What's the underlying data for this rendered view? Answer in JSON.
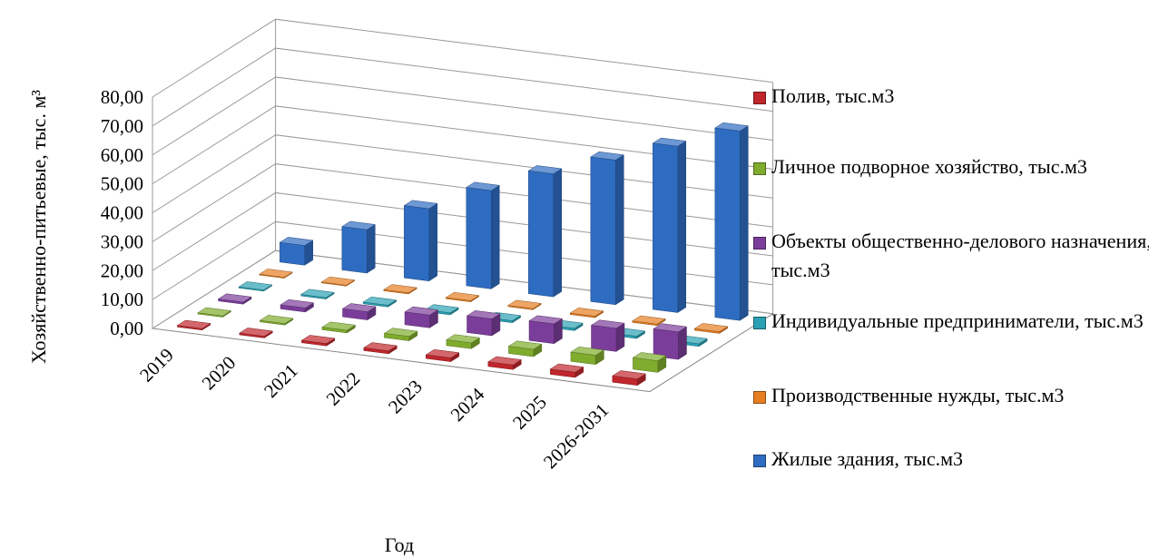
{
  "chart_data": {
    "type": "bar",
    "projection": "3d",
    "categories": [
      "2019",
      "2020",
      "2021",
      "2022",
      "2023",
      "2024",
      "2025",
      "2026-2031"
    ],
    "xlabel": "Год",
    "ylabel": "Хозяйственно-питьевые, тыс. м³",
    "ylim": [
      0,
      80
    ],
    "yticks": [
      "0,00",
      "10,00",
      "20,00",
      "30,00",
      "40,00",
      "50,00",
      "60,00",
      "70,00",
      "80,00"
    ],
    "grid": true,
    "legend_position": "right",
    "series": [
      {
        "name": "Полив, тыс.м3",
        "color": "#c0262b",
        "values": [
          0.5,
          0.6,
          0.8,
          1.0,
          1.3,
          1.6,
          1.8,
          2.2
        ]
      },
      {
        "name": "Личное подворное хозяйство, тыс.м3",
        "color": "#7fac2c",
        "values": [
          0.4,
          0.5,
          0.9,
          1.5,
          2.0,
          2.5,
          3.2,
          4.0
        ]
      },
      {
        "name": "Объекты общественно-делового назначения, тыс.м3",
        "color": "#7b3d9a",
        "values": [
          0.7,
          1.4,
          2.8,
          4.4,
          5.8,
          6.8,
          8.0,
          9.5
        ]
      },
      {
        "name": "Индивидуальные предприниматели, тыс.м3",
        "color": "#2aa0b3",
        "values": [
          0.4,
          0.5,
          0.6,
          0.7,
          0.7,
          0.8,
          0.8,
          0.9
        ]
      },
      {
        "name": "Производственные нужды, тыс.м3",
        "color": "#e67e22",
        "values": [
          0.3,
          0.3,
          0.4,
          0.4,
          0.4,
          0.5,
          0.5,
          0.6
        ]
      },
      {
        "name": "Жилые здания, тыс.м3",
        "color": "#2e6cc2",
        "values": [
          6.8,
          15.0,
          25.0,
          34.0,
          42.5,
          50.0,
          57.5,
          65.5
        ]
      }
    ]
  }
}
